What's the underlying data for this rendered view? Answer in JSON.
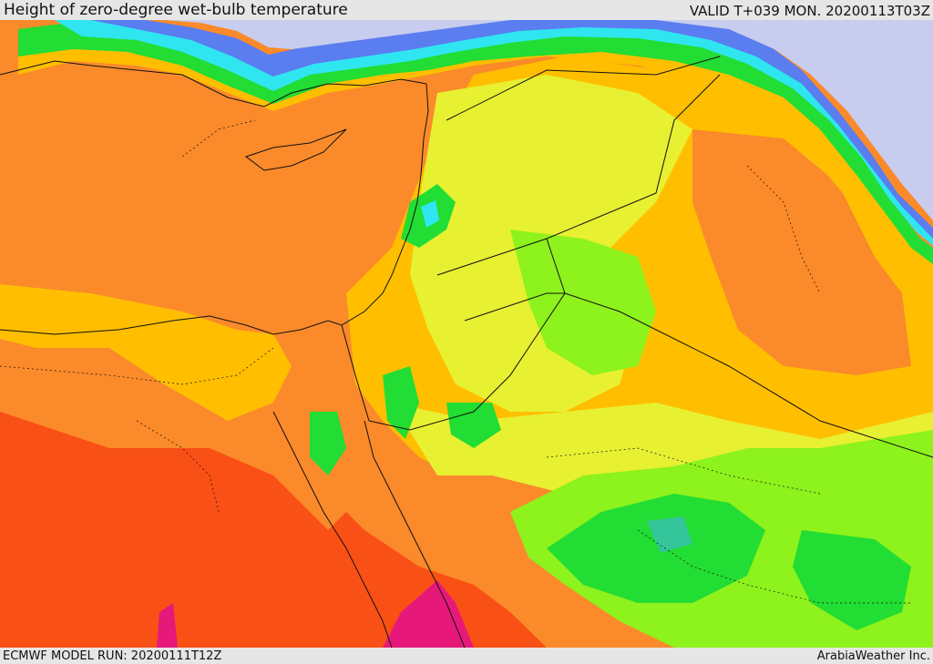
{
  "header": {
    "title": "Height of zero-degree wet-bulb temperature",
    "valid_time": "VALID T+039 MON. 20200113T03Z"
  },
  "footer": {
    "model_run": "ECMWF MODEL RUN: 20200111T12Z",
    "credit": "ArabiaWeather Inc."
  },
  "map": {
    "region": "Eastern Mediterranean, Levant, Egypt, northern Arabia",
    "palette": {
      "sea_neutral": "#c8cdef",
      "blue": "#5a7df0",
      "cyan": "#2fe6f0",
      "teal": "#34c59a",
      "green": "#22dd33",
      "lime": "#8ef21c",
      "yellow_green": "#c8f03a",
      "yellow": "#e8f032",
      "gold": "#ffbf00",
      "orange": "#fb8a2a",
      "red_orange": "#f95016",
      "magenta": "#e6197a"
    }
  }
}
